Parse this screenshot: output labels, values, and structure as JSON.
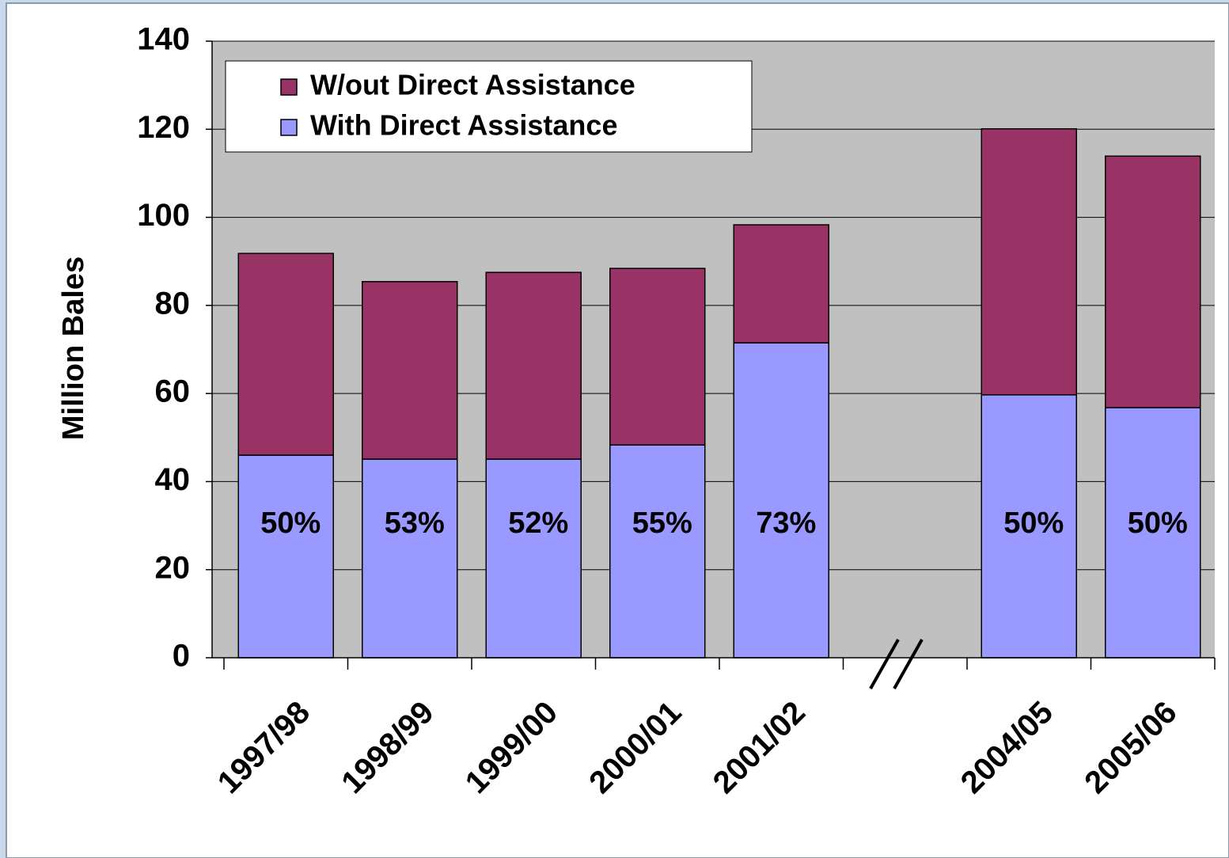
{
  "chart_data": {
    "type": "stacked_bar",
    "y_axis_label": "Million Bales",
    "categories": [
      "1997/98",
      "1998/99",
      "1999/00",
      "2000/01",
      "2001/02",
      null,
      "2004/05",
      "2005/06"
    ],
    "series": [
      {
        "name": "With Direct Assistance",
        "color": "#9999ff",
        "values": [
          46.0,
          45.1,
          45.1,
          48.3,
          71.5,
          null,
          59.7,
          56.8
        ]
      },
      {
        "name": "W/out Direct Assistance",
        "color": "#993366",
        "values": [
          45.8,
          40.3,
          42.4,
          40.1,
          26.8,
          null,
          60.4,
          57.1
        ]
      }
    ],
    "annotations": [
      "50%",
      "53%",
      "52%",
      "55%",
      "73%",
      null,
      "50%",
      "50%"
    ],
    "ylim": [
      0,
      140
    ],
    "yticks": [
      0,
      20,
      40,
      60,
      80,
      100,
      120,
      140
    ],
    "grid": true
  }
}
